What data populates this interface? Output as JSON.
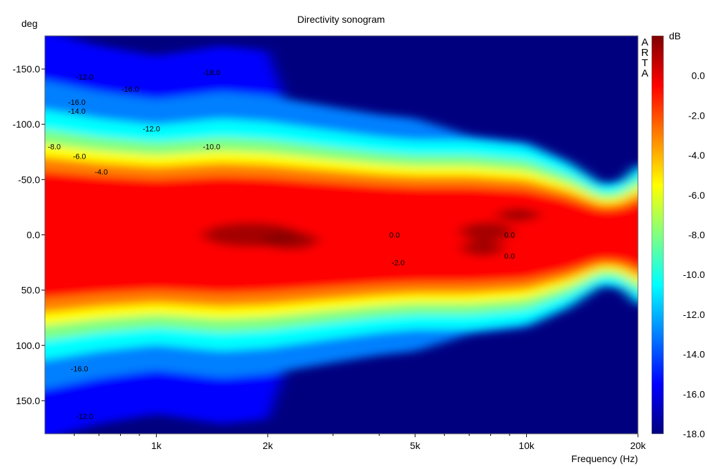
{
  "chart_data": {
    "type": "heatmap",
    "title": "Directivity sonogram",
    "ylabel": "deg",
    "xlabel": "Frequency (Hz)",
    "colorbar_label": "dB",
    "watermark": [
      "A",
      "R",
      "T",
      "A"
    ],
    "x_scale": "log",
    "xlim": [
      500,
      20000
    ],
    "ylim": [
      -180,
      180
    ],
    "y_inverted": true,
    "x_ticks": [
      {
        "value": 1000,
        "label": "1k"
      },
      {
        "value": 2000,
        "label": "2k"
      },
      {
        "value": 5000,
        "label": "5k"
      },
      {
        "value": 10000,
        "label": "10k"
      },
      {
        "value": 20000,
        "label": "20k"
      }
    ],
    "y_ticks": [
      {
        "value": -150,
        "label": "-150.0"
      },
      {
        "value": -100,
        "label": "-100.0"
      },
      {
        "value": -50,
        "label": "-50.0"
      },
      {
        "value": 0,
        "label": "0.0"
      },
      {
        "value": 50,
        "label": "50.0"
      },
      {
        "value": 100,
        "label": "100.0"
      },
      {
        "value": 150,
        "label": "150.0"
      }
    ],
    "colorbar": {
      "min": -18,
      "max": 2,
      "ticks": [
        {
          "value": 0,
          "label": "0.0"
        },
        {
          "value": -2,
          "label": "-2.0"
        },
        {
          "value": -4,
          "label": "-4.0"
        },
        {
          "value": -6,
          "label": "-6.0"
        },
        {
          "value": -8,
          "label": "-8.0"
        },
        {
          "value": -10,
          "label": "-10.0"
        },
        {
          "value": -12,
          "label": "-12.0"
        },
        {
          "value": -14,
          "label": "-14.0"
        },
        {
          "value": -16,
          "label": "-16.0"
        },
        {
          "value": -18,
          "label": "-18.0"
        }
      ],
      "colors": [
        "#00007f",
        "#0000ff",
        "#0080ff",
        "#00ffff",
        "#80ff80",
        "#ffff00",
        "#ff8000",
        "#ff0000",
        "#7f0000"
      ]
    },
    "beamwidth_6db": [
      {
        "freq": 500,
        "angle": 82
      },
      {
        "freq": 700,
        "angle": 76
      },
      {
        "freq": 1000,
        "angle": 72
      },
      {
        "freq": 1500,
        "angle": 76
      },
      {
        "freq": 2000,
        "angle": 74
      },
      {
        "freq": 3000,
        "angle": 68
      },
      {
        "freq": 4000,
        "angle": 64
      },
      {
        "freq": 5000,
        "angle": 62
      },
      {
        "freq": 7000,
        "angle": 62
      },
      {
        "freq": 10000,
        "angle": 58
      },
      {
        "freq": 13000,
        "angle": 46
      },
      {
        "freq": 16000,
        "angle": 32
      },
      {
        "freq": 18000,
        "angle": 34
      },
      {
        "freq": 20000,
        "angle": 44
      }
    ],
    "contour_labels": [
      {
        "freq": 640,
        "angle": -143,
        "label": "-12.0"
      },
      {
        "freq": 1410,
        "angle": -147,
        "label": "-18.0"
      },
      {
        "freq": 850,
        "angle": -132,
        "label": "-16.0"
      },
      {
        "freq": 610,
        "angle": -120,
        "label": "-16.0"
      },
      {
        "freq": 610,
        "angle": -112,
        "label": "-14.0"
      },
      {
        "freq": 970,
        "angle": -96,
        "label": "-12.0"
      },
      {
        "freq": 530,
        "angle": -80,
        "label": "-8.0"
      },
      {
        "freq": 620,
        "angle": -71,
        "label": "-6.0"
      },
      {
        "freq": 710,
        "angle": -57,
        "label": "-4.0"
      },
      {
        "freq": 1410,
        "angle": -80,
        "label": "-10.0"
      },
      {
        "freq": 4400,
        "angle": 0,
        "label": "0.0"
      },
      {
        "freq": 9000,
        "angle": 0,
        "label": "0.0"
      },
      {
        "freq": 4500,
        "angle": 25,
        "label": "-2.0"
      },
      {
        "freq": 9000,
        "angle": 19,
        "label": "0.0"
      },
      {
        "freq": 620,
        "angle": 121,
        "label": "-16.0"
      },
      {
        "freq": 640,
        "angle": 164,
        "label": "-12.0"
      }
    ]
  }
}
